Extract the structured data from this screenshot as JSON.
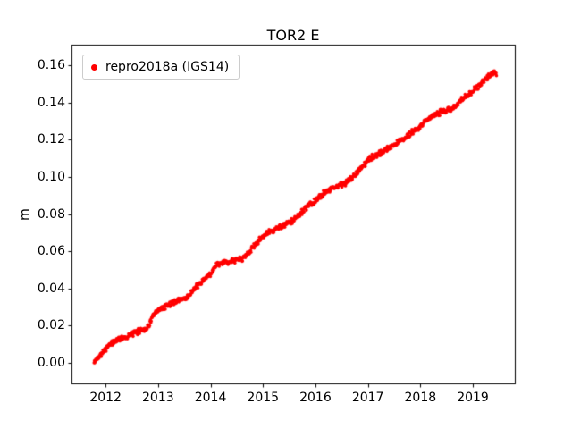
{
  "title": "TOR2 E",
  "legend": {
    "label": "repro2018a (IGS14)",
    "marker_color": "#ff0000"
  },
  "colors": {
    "marker": "#ff0000",
    "axis": "#000000",
    "legend_border": "#cccccc",
    "background": "#ffffff"
  },
  "chart_data": {
    "type": "scatter",
    "title": "TOR2 E",
    "xlabel": "",
    "ylabel": "m",
    "legend_entries": [
      "repro2018a (IGS14)"
    ],
    "legend_position": "upper left",
    "grid": false,
    "xlim": [
      2011.35,
      2019.8
    ],
    "ylim": [
      -0.011,
      0.171
    ],
    "x_ticks": [
      {
        "v": 2012,
        "label": "2012"
      },
      {
        "v": 2013,
        "label": "2013"
      },
      {
        "v": 2014,
        "label": "2014"
      },
      {
        "v": 2015,
        "label": "2015"
      },
      {
        "v": 2016,
        "label": "2016"
      },
      {
        "v": 2017,
        "label": "2017"
      },
      {
        "v": 2018,
        "label": "2018"
      },
      {
        "v": 2019,
        "label": "2019"
      }
    ],
    "y_ticks": [
      {
        "v": 0.0,
        "label": "0.00"
      },
      {
        "v": 0.02,
        "label": "0.02"
      },
      {
        "v": 0.04,
        "label": "0.04"
      },
      {
        "v": 0.06,
        "label": "0.06"
      },
      {
        "v": 0.08,
        "label": "0.08"
      },
      {
        "v": 0.1,
        "label": "0.10"
      },
      {
        "v": 0.12,
        "label": "0.12"
      },
      {
        "v": 0.14,
        "label": "0.14"
      },
      {
        "v": 0.16,
        "label": "0.16"
      }
    ],
    "series": [
      {
        "name": "repro2018a (IGS14)",
        "color": "#ff0000",
        "marker": "dot",
        "anchors": [
          [
            2011.78,
            0.0
          ],
          [
            2011.85,
            0.003
          ],
          [
            2011.95,
            0.006
          ],
          [
            2012.05,
            0.009
          ],
          [
            2012.15,
            0.011
          ],
          [
            2012.25,
            0.013
          ],
          [
            2012.4,
            0.014
          ],
          [
            2012.55,
            0.016
          ],
          [
            2012.7,
            0.018
          ],
          [
            2012.8,
            0.019
          ],
          [
            2012.9,
            0.025
          ],
          [
            2013.0,
            0.028
          ],
          [
            2013.1,
            0.03
          ],
          [
            2013.25,
            0.032
          ],
          [
            2013.4,
            0.034
          ],
          [
            2013.55,
            0.035
          ],
          [
            2013.7,
            0.04
          ],
          [
            2013.85,
            0.044
          ],
          [
            2014.0,
            0.048
          ],
          [
            2014.1,
            0.052
          ],
          [
            2014.25,
            0.054
          ],
          [
            2014.45,
            0.055
          ],
          [
            2014.6,
            0.056
          ],
          [
            2014.75,
            0.06
          ],
          [
            2014.9,
            0.065
          ],
          [
            2015.0,
            0.068
          ],
          [
            2015.1,
            0.07
          ],
          [
            2015.25,
            0.072
          ],
          [
            2015.4,
            0.074
          ],
          [
            2015.55,
            0.076
          ],
          [
            2015.7,
            0.08
          ],
          [
            2015.85,
            0.084
          ],
          [
            2016.0,
            0.087
          ],
          [
            2016.1,
            0.09
          ],
          [
            2016.25,
            0.093
          ],
          [
            2016.4,
            0.095
          ],
          [
            2016.55,
            0.096
          ],
          [
            2016.7,
            0.1
          ],
          [
            2016.85,
            0.104
          ],
          [
            2016.95,
            0.107
          ],
          [
            2017.05,
            0.11
          ],
          [
            2017.2,
            0.112
          ],
          [
            2017.35,
            0.115
          ],
          [
            2017.5,
            0.117
          ],
          [
            2017.65,
            0.12
          ],
          [
            2017.8,
            0.123
          ],
          [
            2017.95,
            0.126
          ],
          [
            2018.1,
            0.13
          ],
          [
            2018.25,
            0.133
          ],
          [
            2018.4,
            0.135
          ],
          [
            2018.55,
            0.136
          ],
          [
            2018.7,
            0.139
          ],
          [
            2018.85,
            0.143
          ],
          [
            2019.0,
            0.146
          ],
          [
            2019.15,
            0.15
          ],
          [
            2019.3,
            0.154
          ],
          [
            2019.4,
            0.156
          ],
          [
            2019.45,
            0.155
          ]
        ],
        "point_interval_years": 0.00767,
        "noise_m": 0.0018
      }
    ]
  }
}
